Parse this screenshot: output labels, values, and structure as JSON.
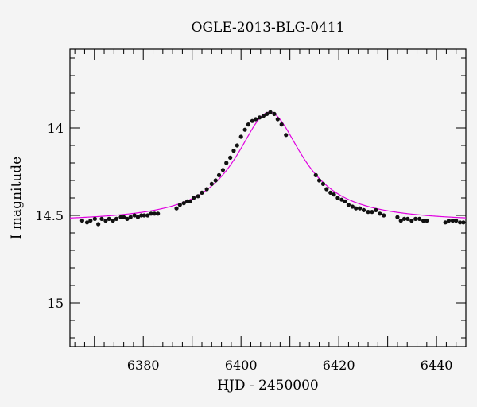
{
  "chart_data": {
    "type": "scatter",
    "title": "OGLE-2013-BLG-0411",
    "xlabel": "HJD - 2450000",
    "ylabel": "I magnitude",
    "xlim": [
      6365,
      6446
    ],
    "ylim": [
      15.25,
      13.55
    ],
    "y_inverted": true,
    "x_ticks": [
      6380,
      6400,
      6420,
      6440
    ],
    "x_tick_labels": [
      "6380",
      "6400",
      "6420",
      "6440"
    ],
    "y_ticks": [
      14,
      14.5,
      15
    ],
    "y_tick_labels": [
      "14",
      "14.5",
      "15"
    ],
    "grid": false,
    "colors": {
      "points": "#111111",
      "model": "#e000e0"
    },
    "model": {
      "baseline": 14.54,
      "peak": 13.91,
      "t0": 6405.8,
      "width": 8.3
    },
    "series": [
      {
        "kind": "points",
        "points": [
          [
            6367.5,
            14.53
          ],
          [
            6368.5,
            14.54
          ],
          [
            6369.2,
            14.53
          ],
          [
            6370.1,
            14.52
          ],
          [
            6370.8,
            14.55
          ],
          [
            6371.5,
            14.52
          ],
          [
            6372.3,
            14.53
          ],
          [
            6373.0,
            14.52
          ],
          [
            6373.8,
            14.53
          ],
          [
            6374.5,
            14.52
          ],
          [
            6375.4,
            14.51
          ],
          [
            6376.0,
            14.51
          ],
          [
            6376.7,
            14.52
          ],
          [
            6377.4,
            14.51
          ],
          [
            6378.2,
            14.5
          ],
          [
            6378.9,
            14.51
          ],
          [
            6379.6,
            14.5
          ],
          [
            6380.2,
            14.5
          ],
          [
            6380.9,
            14.5
          ],
          [
            6381.6,
            14.49
          ],
          [
            6382.3,
            14.49
          ],
          [
            6383.0,
            14.49
          ],
          [
            6386.8,
            14.46
          ],
          [
            6387.5,
            14.44
          ],
          [
            6388.3,
            14.43
          ],
          [
            6389.0,
            14.42
          ],
          [
            6389.6,
            14.42
          ],
          [
            6390.3,
            14.4
          ],
          [
            6391.2,
            14.39
          ],
          [
            6392.0,
            14.37
          ],
          [
            6393.0,
            14.35
          ],
          [
            6394.0,
            14.32
          ],
          [
            6394.8,
            14.3
          ],
          [
            6395.5,
            14.27
          ],
          [
            6396.3,
            14.24
          ],
          [
            6397.0,
            14.2
          ],
          [
            6397.8,
            14.17
          ],
          [
            6398.5,
            14.13
          ],
          [
            6399.2,
            14.1
          ],
          [
            6400.0,
            14.05
          ],
          [
            6400.8,
            14.01
          ],
          [
            6401.5,
            13.98
          ],
          [
            6402.3,
            13.96
          ],
          [
            6403.0,
            13.95
          ],
          [
            6403.8,
            13.94
          ],
          [
            6404.6,
            13.93
          ],
          [
            6405.3,
            13.92
          ],
          [
            6406.0,
            13.91
          ],
          [
            6406.8,
            13.92
          ],
          [
            6407.5,
            13.95
          ],
          [
            6408.3,
            13.98
          ],
          [
            6409.2,
            14.04
          ],
          [
            6415.3,
            14.27
          ],
          [
            6416.0,
            14.3
          ],
          [
            6416.8,
            14.32
          ],
          [
            6417.5,
            14.35
          ],
          [
            6418.3,
            14.37
          ],
          [
            6419.0,
            14.38
          ],
          [
            6419.8,
            14.4
          ],
          [
            6420.6,
            14.41
          ],
          [
            6421.3,
            14.42
          ],
          [
            6422.0,
            14.44
          ],
          [
            6422.8,
            14.45
          ],
          [
            6423.5,
            14.46
          ],
          [
            6424.3,
            14.46
          ],
          [
            6425.1,
            14.47
          ],
          [
            6426.0,
            14.48
          ],
          [
            6426.8,
            14.48
          ],
          [
            6427.6,
            14.47
          ],
          [
            6428.4,
            14.49
          ],
          [
            6429.2,
            14.5
          ],
          [
            6432.0,
            14.51
          ],
          [
            6432.7,
            14.53
          ],
          [
            6433.4,
            14.52
          ],
          [
            6434.1,
            14.52
          ],
          [
            6434.9,
            14.53
          ],
          [
            6435.7,
            14.52
          ],
          [
            6436.5,
            14.52
          ],
          [
            6437.3,
            14.53
          ],
          [
            6438.0,
            14.53
          ],
          [
            6441.8,
            14.54
          ],
          [
            6442.5,
            14.53
          ],
          [
            6443.3,
            14.53
          ],
          [
            6444.0,
            14.53
          ],
          [
            6444.8,
            14.54
          ],
          [
            6445.5,
            14.54
          ]
        ]
      }
    ]
  }
}
